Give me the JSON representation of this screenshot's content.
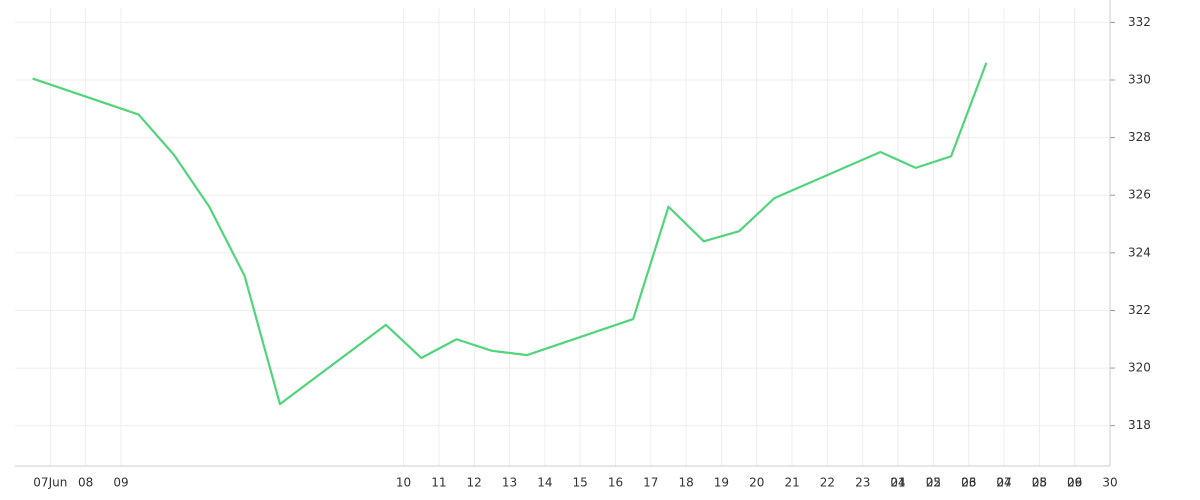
{
  "chart_data": {
    "type": "line",
    "x": [
      -0.5,
      2.5,
      3.5,
      4.5,
      5.5,
      6.5,
      9.5,
      10.5,
      11.5,
      12.5,
      13.5,
      16.5,
      17.5,
      18.5,
      19.5,
      20.5,
      23.5,
      24.5,
      25.5,
      26.5
    ],
    "series": [
      {
        "color": "#52d47c",
        "values": [
          330.05,
          328.8,
          327.4,
          325.6,
          323.2,
          318.75,
          321.5,
          320.35,
          321.0,
          320.6,
          320.45,
          321.7,
          325.6,
          324.4,
          324.75,
          325.9,
          327.5,
          326.95,
          327.35,
          330.6
        ]
      }
    ],
    "xlim": [
      -1,
      30
    ],
    "xticks": [
      {
        "value": 0,
        "label": "07Jun"
      },
      {
        "value": 1,
        "label": "08"
      },
      {
        "value": 2,
        "label": "09"
      },
      10,
      11,
      12,
      13,
      14,
      15,
      16,
      17,
      18,
      19,
      20,
      21,
      22,
      23,
      24,
      25,
      26,
      27,
      28,
      29,
      30,
      {
        "value": 24,
        "label": "01"
      },
      {
        "value": 25,
        "label": "02"
      },
      {
        "value": 26,
        "label": "03"
      },
      {
        "value": 27,
        "label": "04"
      },
      {
        "value": 28,
        "label": "05"
      },
      {
        "value": 29,
        "label": "06"
      }
    ],
    "ylim": [
      316.6,
      332.5
    ],
    "yticks": [
      318,
      320,
      322,
      324,
      326,
      328,
      330,
      332
    ],
    "grid": true
  }
}
